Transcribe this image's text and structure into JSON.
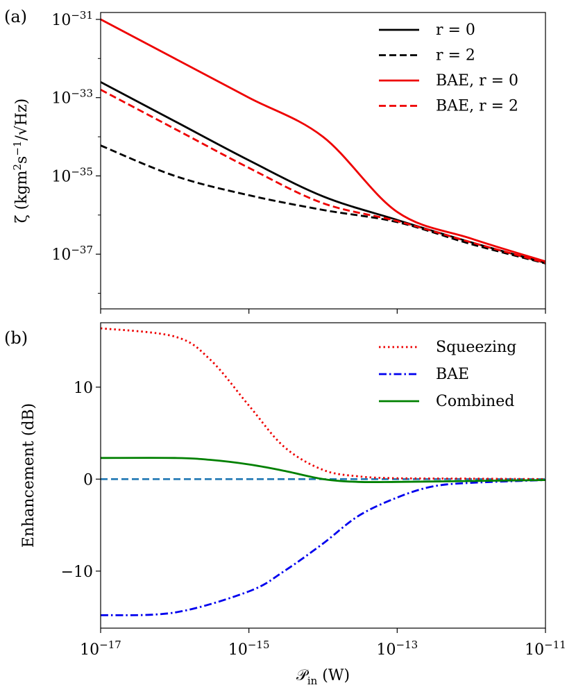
{
  "chart_data": [
    {
      "panel_label": "(a)",
      "type": "line",
      "xscale": "log",
      "yscale": "log",
      "xlim": [
        1e-17,
        1e-11
      ],
      "ylim": [
        4e-39,
        1.5e-31
      ],
      "xticks": [
        1e-17,
        1e-15,
        1e-13,
        1e-11
      ],
      "yticks": [
        {
          "value": 1e-31,
          "base": "10",
          "exp": "−31"
        },
        {
          "value": 1e-33,
          "base": "10",
          "exp": "−33"
        },
        {
          "value": 1e-35,
          "base": "10",
          "exp": "−35"
        },
        {
          "value": 1e-37,
          "base": "10",
          "exp": "−37"
        }
      ],
      "ylabel": {
        "main": "ζ (kgm",
        "sup1": "2",
        "mid": "s",
        "sup2": "−1",
        "tail": "/√Hz)"
      },
      "legend_position": "top-right",
      "grid": false,
      "series": [
        {
          "name": "r = 0",
          "color": "#000000",
          "dash": "solid",
          "x": [
            1e-17,
            1e-16,
            1e-15,
            1e-14,
            1e-13,
            1e-12,
            1e-11
          ],
          "y": [
            2.5e-33,
            2.5e-34,
            2.5e-35,
            3e-36,
            7.5e-37,
            2e-37,
            6e-38
          ]
        },
        {
          "name": "r = 2",
          "color": "#000000",
          "dash": "dashed",
          "x": [
            1e-17,
            1e-16,
            1e-15,
            1e-14,
            1e-13,
            1e-12,
            1e-11
          ],
          "y": [
            6e-35,
            1e-35,
            3.2e-36,
            1.35e-36,
            6.6e-37,
            1.8e-37,
            5.8e-38
          ]
        },
        {
          "name": "BAE, r = 0",
          "color": "#ee0000",
          "dash": "solid",
          "x": [
            1e-17,
            1e-16,
            1e-15,
            1e-14,
            1e-13,
            1e-12,
            1e-11
          ],
          "y": [
            1e-31,
            1e-32,
            1e-33,
            1e-34,
            1.2e-36,
            2.5e-37,
            6.5e-38
          ]
        },
        {
          "name": "BAE, r = 2",
          "color": "#ee0000",
          "dash": "dashed",
          "x": [
            1e-17,
            1e-16,
            1e-15,
            1e-14,
            1e-13,
            1e-12,
            1e-11
          ],
          "y": [
            1.6e-33,
            1.6e-34,
            1.6e-35,
            2e-36,
            7e-37,
            2e-37,
            6e-38
          ]
        }
      ]
    },
    {
      "panel_label": "(b)",
      "type": "line",
      "xscale": "log",
      "xlim": [
        1e-17,
        1e-11
      ],
      "ylim": [
        -16.2,
        17.0
      ],
      "xticks": [
        {
          "value": 1e-17,
          "base": "10",
          "exp": "−17"
        },
        {
          "value": 1e-15,
          "base": "10",
          "exp": "−15"
        },
        {
          "value": 1e-13,
          "base": "10",
          "exp": "−13"
        },
        {
          "value": 1e-11,
          "base": "10",
          "exp": "−11"
        }
      ],
      "yticks": [
        {
          "value": 10,
          "label": "10"
        },
        {
          "value": 0,
          "label": "0"
        },
        {
          "value": -10,
          "label": "−10"
        }
      ],
      "ylabel": "Enhancement (dB)",
      "xlabel": {
        "main": "𝒫",
        "sub": "in",
        "tail": " (W)"
      },
      "legend_position": "top-right",
      "grid": false,
      "reference_line": {
        "y": 0,
        "color": "#1f77b4",
        "dash": "dashed"
      },
      "series": [
        {
          "name": "Squeezing",
          "color": "#ee0000",
          "dash": "dotted",
          "x": [
            1e-17,
            1e-16,
            3e-16,
            1e-15,
            3e-15,
            1e-14,
            3e-14,
            1e-13,
            1e-12,
            1e-11
          ],
          "y": [
            16.4,
            15.5,
            13.0,
            8.0,
            3.5,
            1.0,
            0.3,
            0.1,
            0.05,
            0.0
          ]
        },
        {
          "name": "BAE",
          "color": "#0000ee",
          "dash": "dashdot",
          "x": [
            1e-17,
            1e-16,
            1e-15,
            3e-15,
            1e-14,
            3e-14,
            1e-13,
            3e-13,
            1e-12,
            1e-11
          ],
          "y": [
            -14.8,
            -14.5,
            -12.2,
            -10.0,
            -7.0,
            -4.0,
            -2.0,
            -0.8,
            -0.4,
            -0.1
          ]
        },
        {
          "name": "Combined",
          "color": "#008000",
          "dash": "solid",
          "x": [
            1e-17,
            1e-16,
            3e-16,
            1e-15,
            3e-15,
            1e-14,
            3e-14,
            1e-13,
            1e-12,
            1e-11
          ],
          "y": [
            2.3,
            2.3,
            2.1,
            1.6,
            0.9,
            0.0,
            -0.3,
            -0.3,
            -0.2,
            -0.1
          ]
        }
      ]
    }
  ]
}
